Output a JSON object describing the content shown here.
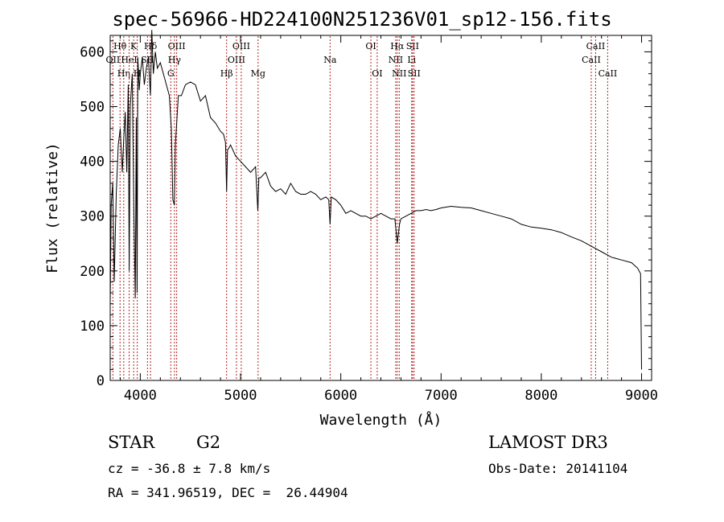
{
  "chart_data": {
    "type": "line",
    "title": "spec-56966-HD224100N251236V01_sp12-156.fits",
    "xlabel": "Wavelength (Å)",
    "ylabel": "Flux (relative)",
    "xlim": [
      3700,
      9100
    ],
    "ylim": [
      0,
      630
    ],
    "xticks": [
      4000,
      5000,
      6000,
      7000,
      8000,
      9000
    ],
    "yticks": [
      0,
      100,
      200,
      300,
      400,
      500,
      600
    ],
    "xtick_labels": [
      "4000",
      "5000",
      "6000",
      "7000",
      "8000",
      "9000"
    ],
    "ytick_labels": [
      "0",
      "100",
      "200",
      "300",
      "400",
      "500",
      "600"
    ],
    "series": [
      {
        "name": "flux",
        "x": [
          3700,
          3710,
          3725,
          3740,
          3760,
          3780,
          3800,
          3820,
          3835,
          3850,
          3865,
          3880,
          3889,
          3900,
          3920,
          3935,
          3950,
          3960,
          3968,
          3975,
          3990,
          4000,
          4020,
          4040,
          4060,
          4080,
          4101,
          4115,
          4130,
          4150,
          4170,
          4200,
          4230,
          4260,
          4290,
          4310,
          4325,
          4340,
          4350,
          4380,
          4410,
          4450,
          4500,
          4550,
          4600,
          4650,
          4700,
          4750,
          4800,
          4830,
          4850,
          4861,
          4870,
          4900,
          4950,
          5000,
          5050,
          5100,
          5150,
          5172,
          5183,
          5200,
          5250,
          5300,
          5350,
          5400,
          5450,
          5500,
          5550,
          5600,
          5650,
          5700,
          5750,
          5800,
          5850,
          5880,
          5893,
          5905,
          5950,
          6000,
          6050,
          6100,
          6150,
          6200,
          6250,
          6300,
          6350,
          6400,
          6450,
          6500,
          6540,
          6563,
          6585,
          6600,
          6650,
          6700,
          6750,
          6800,
          6850,
          6900,
          6950,
          7000,
          7100,
          7200,
          7300,
          7400,
          7500,
          7600,
          7700,
          7800,
          7900,
          8000,
          8100,
          8200,
          8300,
          8400,
          8500,
          8600,
          8700,
          8800,
          8900,
          8960,
          8990,
          9000
        ],
        "y": [
          140,
          320,
          360,
          180,
          340,
          430,
          460,
          380,
          440,
          490,
          380,
          540,
          200,
          500,
          560,
          320,
          150,
          480,
          160,
          590,
          530,
          560,
          590,
          540,
          570,
          590,
          520,
          640,
          560,
          600,
          570,
          580,
          560,
          540,
          520,
          460,
          330,
          320,
          430,
          520,
          520,
          540,
          545,
          540,
          510,
          520,
          480,
          470,
          455,
          450,
          435,
          345,
          420,
          430,
          410,
          400,
          390,
          380,
          390,
          310,
          370,
          370,
          380,
          355,
          345,
          350,
          340,
          360,
          345,
          340,
          340,
          345,
          340,
          330,
          335,
          330,
          285,
          335,
          330,
          320,
          305,
          310,
          305,
          300,
          300,
          295,
          300,
          305,
          300,
          295,
          295,
          250,
          285,
          295,
          300,
          305,
          310,
          310,
          312,
          310,
          312,
          315,
          318,
          316,
          315,
          310,
          305,
          300,
          295,
          285,
          280,
          278,
          275,
          270,
          262,
          255,
          245,
          235,
          225,
          220,
          215,
          205,
          195,
          20
        ]
      }
    ],
    "line_markers": [
      {
        "wavelength": 3727,
        "label": "OII",
        "row": 2
      },
      {
        "wavelength": 3798,
        "label": "Hθ",
        "row": 1
      },
      {
        "wavelength": 3835,
        "label": "Hη",
        "row": 3
      },
      {
        "wavelength": 3889,
        "label": "HeI",
        "row": 2
      },
      {
        "wavelength": 3934,
        "label": "K",
        "row": 1
      },
      {
        "wavelength": 3970,
        "label": "H",
        "row": 3
      },
      {
        "wavelength": 4072,
        "label": "SII",
        "row": 2
      },
      {
        "wavelength": 4102,
        "label": "Hδ",
        "row": 1
      },
      {
        "wavelength": 4304,
        "label": "G",
        "row": 3
      },
      {
        "wavelength": 4341,
        "label": "Hγ",
        "row": 2
      },
      {
        "wavelength": 4363,
        "label": "OIII",
        "row": 1
      },
      {
        "wavelength": 4861,
        "label": "Hβ",
        "row": 3
      },
      {
        "wavelength": 4959,
        "label": "OIII",
        "row": 2
      },
      {
        "wavelength": 5007,
        "label": "OIII",
        "row": 1
      },
      {
        "wavelength": 5175,
        "label": "Mg",
        "row": 3
      },
      {
        "wavelength": 5893,
        "label": "Na",
        "row": 2
      },
      {
        "wavelength": 6300,
        "label": "OI",
        "row": 1
      },
      {
        "wavelength": 6363,
        "label": "OI",
        "row": 3
      },
      {
        "wavelength": 6548,
        "label": "NII",
        "row": 2
      },
      {
        "wavelength": 6563,
        "label": "Hα",
        "row": 1
      },
      {
        "wavelength": 6583,
        "label": "NII",
        "row": 3
      },
      {
        "wavelength": 6707,
        "label": "Li",
        "row": 2
      },
      {
        "wavelength": 6716,
        "label": "SII",
        "row": 1
      },
      {
        "wavelength": 6731,
        "label": "SII",
        "row": 3
      },
      {
        "wavelength": 8498,
        "label": "CaII",
        "row": 2
      },
      {
        "wavelength": 8542,
        "label": "CaII",
        "row": 1
      },
      {
        "wavelength": 8662,
        "label": "CaII",
        "row": 3
      }
    ],
    "marker_color": "#b22222"
  },
  "info": {
    "object_class": "STAR",
    "subclass": "G2",
    "survey": "LAMOST DR3",
    "cz": "cz = -36.8 ± 7.8 km/s",
    "obs_date": "Obs-Date: 20141104",
    "radec": "RA = 341.96519, DEC =  26.44904"
  }
}
